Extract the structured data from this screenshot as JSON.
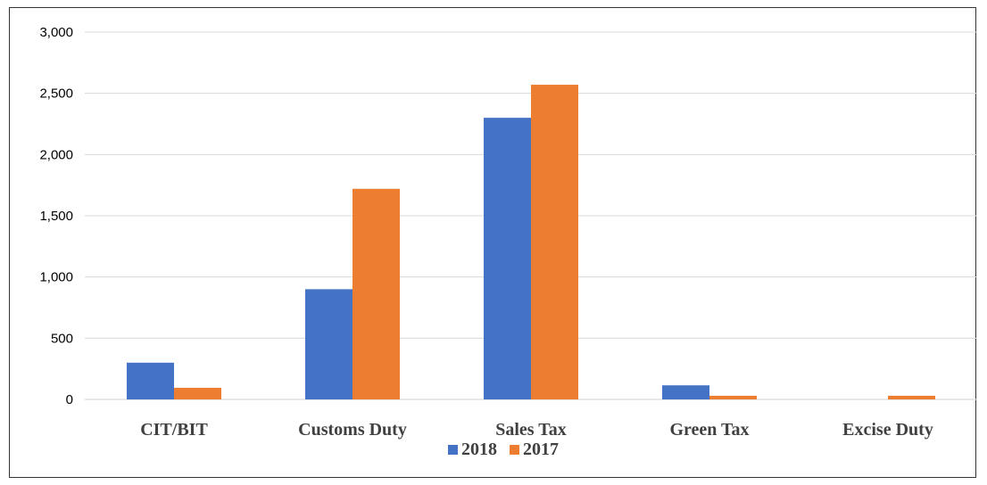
{
  "chart_data": {
    "type": "bar",
    "title": "",
    "xlabel": "",
    "ylabel": "",
    "categories": [
      "CIT/BIT",
      "Customs Duty",
      "Sales Tax",
      "Green Tax",
      "Excise Duty"
    ],
    "series": [
      {
        "name": "2018",
        "color": "#4472c4",
        "values": [
          300,
          900,
          2300,
          115,
          0
        ]
      },
      {
        "name": "2017",
        "color": "#ed7d31",
        "values": [
          95,
          1720,
          2570,
          30,
          30
        ]
      }
    ],
    "ylim": [
      0,
      3000
    ],
    "yticks": [
      0,
      500,
      1000,
      1500,
      2000,
      2500,
      3000
    ],
    "ytick_labels": [
      "0",
      "500",
      "1,000",
      "1,500",
      "2,000",
      "2,500",
      "3,000"
    ],
    "grid": true,
    "legend_placement": "bottom-center"
  }
}
